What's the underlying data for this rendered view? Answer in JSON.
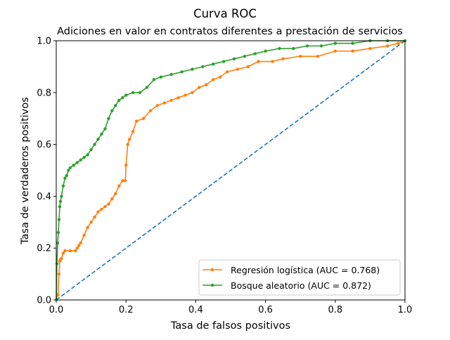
{
  "chart_data": {
    "type": "line",
    "suptitle": "Curva ROC",
    "title": "Adiciones en valor en contratos diferentes a prestación de servicios",
    "xlabel": "Tasa de falsos positivos",
    "ylabel": "Tasa de verdaderos positivos",
    "xlim": [
      0,
      1
    ],
    "ylim": [
      0,
      1
    ],
    "xticks": [
      "0.0",
      "0.2",
      "0.4",
      "0.6",
      "0.8",
      "1.0"
    ],
    "yticks": [
      "0.0",
      "0.2",
      "0.4",
      "0.6",
      "0.8",
      "1.0"
    ],
    "grid": false,
    "legend_position": "lower-right",
    "colors": {
      "diagonal": "#1f77b4",
      "logistic": "#ff7f0e",
      "forest": "#2ca02c"
    },
    "diagonal": {
      "x": [
        0,
        1
      ],
      "y": [
        0,
        1
      ],
      "style": "dashed"
    },
    "series": [
      {
        "name": "Regresión logística (AUC = 0.768)",
        "x": [
          0,
          0.005,
          0.008,
          0.01,
          0.012,
          0.015,
          0.02,
          0.025,
          0.04,
          0.055,
          0.06,
          0.065,
          0.07,
          0.08,
          0.09,
          0.1,
          0.11,
          0.12,
          0.13,
          0.14,
          0.15,
          0.16,
          0.17,
          0.18,
          0.19,
          0.198,
          0.2,
          0.205,
          0.21,
          0.22,
          0.23,
          0.25,
          0.27,
          0.29,
          0.31,
          0.33,
          0.35,
          0.37,
          0.39,
          0.41,
          0.43,
          0.45,
          0.47,
          0.49,
          0.52,
          0.55,
          0.58,
          0.62,
          0.65,
          0.7,
          0.75,
          0.8,
          0.85,
          0.9,
          0.95,
          0.98,
          1.0
        ],
        "y": [
          0,
          0.02,
          0.1,
          0.15,
          0.155,
          0.16,
          0.18,
          0.19,
          0.19,
          0.19,
          0.2,
          0.21,
          0.22,
          0.25,
          0.28,
          0.3,
          0.32,
          0.34,
          0.35,
          0.36,
          0.37,
          0.39,
          0.41,
          0.44,
          0.46,
          0.46,
          0.52,
          0.6,
          0.62,
          0.65,
          0.69,
          0.7,
          0.73,
          0.75,
          0.76,
          0.77,
          0.78,
          0.79,
          0.8,
          0.82,
          0.83,
          0.85,
          0.86,
          0.88,
          0.89,
          0.9,
          0.92,
          0.92,
          0.93,
          0.94,
          0.94,
          0.96,
          0.96,
          0.97,
          0.98,
          0.99,
          1.0
        ]
      },
      {
        "name": "Bosque aleatorio (AUC = 0.872)",
        "x": [
          0,
          0.002,
          0.004,
          0.006,
          0.008,
          0.01,
          0.012,
          0.015,
          0.02,
          0.025,
          0.03,
          0.035,
          0.04,
          0.05,
          0.06,
          0.07,
          0.08,
          0.09,
          0.1,
          0.11,
          0.12,
          0.13,
          0.14,
          0.15,
          0.16,
          0.17,
          0.18,
          0.19,
          0.2,
          0.22,
          0.24,
          0.26,
          0.28,
          0.3,
          0.33,
          0.36,
          0.39,
          0.42,
          0.45,
          0.48,
          0.51,
          0.54,
          0.57,
          0.6,
          0.64,
          0.68,
          0.72,
          0.76,
          0.8,
          0.85,
          0.9,
          0.95,
          1.0
        ],
        "y": [
          0,
          0.14,
          0.22,
          0.26,
          0.31,
          0.36,
          0.38,
          0.4,
          0.44,
          0.47,
          0.48,
          0.5,
          0.51,
          0.52,
          0.53,
          0.54,
          0.55,
          0.56,
          0.58,
          0.6,
          0.62,
          0.64,
          0.66,
          0.7,
          0.73,
          0.75,
          0.77,
          0.78,
          0.79,
          0.8,
          0.8,
          0.82,
          0.85,
          0.86,
          0.87,
          0.88,
          0.89,
          0.9,
          0.91,
          0.92,
          0.93,
          0.94,
          0.95,
          0.96,
          0.97,
          0.97,
          0.98,
          0.98,
          0.99,
          0.99,
          1.0,
          1.0,
          1.0
        ]
      }
    ]
  }
}
